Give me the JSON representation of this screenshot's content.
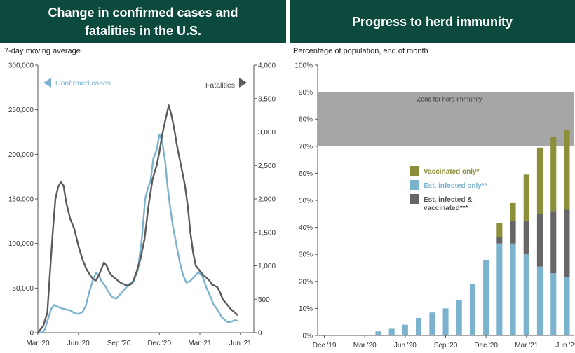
{
  "panels": {
    "left_title": "Change in confirmed cases and fatalities in the U.S.",
    "right_title": "Progress to herd immunity"
  },
  "colors": {
    "banner": "#0c4a3d",
    "cases": "#7bb3cf",
    "fatalities": "#5a5a5a",
    "vaccinated_only": "#8c8f3a",
    "infected_only": "#7bb3cf",
    "infected_vaccinated": "#666666",
    "herd_zone": "#a6a6a6"
  },
  "chart_data": [
    {
      "type": "line",
      "title": "Change in confirmed cases and fatalities in the U.S.",
      "subtitle": "7-day moving average",
      "x_ticks": [
        "Mar '20",
        "Jun '20",
        "Sep '20",
        "Dec '20",
        "Mar '21",
        "Jun '21"
      ],
      "x_range": [
        0,
        16
      ],
      "y_left": {
        "range": [
          0,
          300000
        ],
        "ticks": [
          "0",
          "50,000",
          "100,000",
          "150,000",
          "200,000",
          "250,000",
          "300,000"
        ],
        "tick_values": [
          0,
          50000,
          100000,
          150000,
          200000,
          250000,
          300000
        ]
      },
      "y_right": {
        "range": [
          0,
          4000
        ],
        "ticks": [
          "0",
          "500",
          "1,000",
          "1,500",
          "2,000",
          "2,500",
          "3,000",
          "3,500",
          "4,000"
        ],
        "tick_values": [
          0,
          500,
          1000,
          1500,
          2000,
          2500,
          3000,
          3500,
          4000
        ]
      },
      "legend": {
        "cases_label": "Confirmed cases",
        "fatalities_label": "Fatalities"
      },
      "series": [
        {
          "name": "Confirmed cases",
          "axis": "left",
          "points": [
            [
              0,
              0
            ],
            [
              0.3,
              200
            ],
            [
              0.5,
              3000
            ],
            [
              0.75,
              15000
            ],
            [
              1.0,
              27000
            ],
            [
              1.2,
              31000
            ],
            [
              1.5,
              29000
            ],
            [
              1.8,
              27000
            ],
            [
              2.1,
              26000
            ],
            [
              2.4,
              25000
            ],
            [
              2.7,
              22000
            ],
            [
              3.0,
              21000
            ],
            [
              3.3,
              23000
            ],
            [
              3.55,
              30000
            ],
            [
              3.8,
              45000
            ],
            [
              4.1,
              60000
            ],
            [
              4.3,
              67000
            ],
            [
              4.5,
              65000
            ],
            [
              4.7,
              58000
            ],
            [
              5.0,
              52000
            ],
            [
              5.25,
              45000
            ],
            [
              5.5,
              40000
            ],
            [
              5.8,
              38000
            ],
            [
              6.1,
              43000
            ],
            [
              6.5,
              50000
            ],
            [
              6.8,
              55000
            ],
            [
              7.1,
              58000
            ],
            [
              7.4,
              70000
            ],
            [
              7.7,
              105000
            ],
            [
              7.95,
              150000
            ],
            [
              8.15,
              162000
            ],
            [
              8.35,
              170000
            ],
            [
              8.55,
              195000
            ],
            [
              8.8,
              205000
            ],
            [
              9.0,
              222000
            ],
            [
              9.2,
              215000
            ],
            [
              9.45,
              190000
            ],
            [
              9.6,
              165000
            ],
            [
              9.8,
              140000
            ],
            [
              10.0,
              120000
            ],
            [
              10.25,
              100000
            ],
            [
              10.5,
              80000
            ],
            [
              10.75,
              65000
            ],
            [
              11.0,
              56000
            ],
            [
              11.3,
              58000
            ],
            [
              11.6,
              63000
            ],
            [
              11.9,
              68000
            ],
            [
              12.2,
              63000
            ],
            [
              12.5,
              50000
            ],
            [
              12.8,
              40000
            ],
            [
              13.0,
              32000
            ],
            [
              13.3,
              26000
            ],
            [
              13.6,
              18000
            ],
            [
              13.8,
              15000
            ],
            [
              14.0,
              12000
            ],
            [
              14.3,
              12000
            ],
            [
              14.6,
              14000
            ],
            [
              14.8,
              13000
            ]
          ]
        },
        {
          "name": "Fatalities",
          "axis": "right",
          "points": [
            [
              0,
              0
            ],
            [
              0.4,
              100
            ],
            [
              0.7,
              300
            ],
            [
              0.9,
              900
            ],
            [
              1.1,
              1500
            ],
            [
              1.3,
              2000
            ],
            [
              1.5,
              2180
            ],
            [
              1.7,
              2250
            ],
            [
              1.9,
              2200
            ],
            [
              2.1,
              1950
            ],
            [
              2.4,
              1700
            ],
            [
              2.7,
              1550
            ],
            [
              3.0,
              1300
            ],
            [
              3.3,
              1100
            ],
            [
              3.6,
              950
            ],
            [
              3.9,
              850
            ],
            [
              4.1,
              800
            ],
            [
              4.3,
              780
            ],
            [
              4.5,
              850
            ],
            [
              4.7,
              950
            ],
            [
              4.9,
              1050
            ],
            [
              5.1,
              1000
            ],
            [
              5.3,
              900
            ],
            [
              5.5,
              850
            ],
            [
              5.8,
              800
            ],
            [
              6.1,
              750
            ],
            [
              6.4,
              720
            ],
            [
              6.7,
              700
            ],
            [
              7.0,
              740
            ],
            [
              7.3,
              900
            ],
            [
              7.6,
              1100
            ],
            [
              7.9,
              1400
            ],
            [
              8.2,
              1900
            ],
            [
              8.5,
              2300
            ],
            [
              8.8,
              2500
            ],
            [
              9.0,
              2700
            ],
            [
              9.2,
              2950
            ],
            [
              9.45,
              3180
            ],
            [
              9.7,
              3400
            ],
            [
              9.9,
              3250
            ],
            [
              10.1,
              3050
            ],
            [
              10.3,
              2800
            ],
            [
              10.5,
              2600
            ],
            [
              10.7,
              2400
            ],
            [
              10.9,
              2200
            ],
            [
              11.1,
              1900
            ],
            [
              11.3,
              1500
            ],
            [
              11.5,
              1200
            ],
            [
              11.7,
              1000
            ],
            [
              11.9,
              950
            ],
            [
              12.1,
              900
            ],
            [
              12.3,
              850
            ],
            [
              12.5,
              820
            ],
            [
              12.7,
              780
            ],
            [
              12.9,
              720
            ],
            [
              13.1,
              700
            ],
            [
              13.3,
              680
            ],
            [
              13.5,
              600
            ],
            [
              13.7,
              500
            ],
            [
              13.9,
              450
            ],
            [
              14.1,
              400
            ],
            [
              14.3,
              350
            ],
            [
              14.6,
              300
            ],
            [
              14.8,
              260
            ]
          ]
        }
      ]
    },
    {
      "type": "bar",
      "stacked": true,
      "title": "Progress to herd immunity",
      "subtitle": "Percentage of population, end of month",
      "x_ticks": [
        "Dec '19",
        "Mar '20",
        "Jun '20",
        "Sep '20",
        "Dec '20",
        "Mar '21",
        "Jun '21"
      ],
      "y_ticks": [
        "0%",
        "10%",
        "20%",
        "30%",
        "40%",
        "50%",
        "60%",
        "70%",
        "80%",
        "90%",
        "100%"
      ],
      "y_tick_values": [
        0,
        10,
        20,
        30,
        40,
        50,
        60,
        70,
        80,
        90,
        100
      ],
      "ylim": [
        0,
        100
      ],
      "herd_zone": {
        "label": "Zone for herd immunity",
        "range": [
          70,
          90
        ]
      },
      "categories": [
        "Dec '19",
        "Jan '20",
        "Feb '20",
        "Mar '20",
        "Apr '20",
        "May '20",
        "Jun '20",
        "Jul '20",
        "Aug '20",
        "Sep '20",
        "Oct '20",
        "Nov '20",
        "Dec '20",
        "Jan '21",
        "Feb '21",
        "Mar '21",
        "Apr '21",
        "May '21",
        "Jun '21"
      ],
      "series": [
        {
          "name": "Est. infected only**",
          "values": [
            0,
            0,
            0,
            0.2,
            1.5,
            2.5,
            4,
            6.5,
            8.5,
            10,
            13,
            19,
            28,
            34,
            34,
            30,
            25.5,
            23,
            21.5
          ]
        },
        {
          "name": "Est. infected & vaccinated***",
          "values": [
            0,
            0,
            0,
            0,
            0,
            0,
            0,
            0,
            0,
            0,
            0,
            0,
            0,
            2.5,
            8.5,
            12.5,
            19.5,
            23,
            25
          ]
        },
        {
          "name": "Vaccinated only*",
          "values": [
            0,
            0,
            0,
            0,
            0,
            0,
            0,
            0,
            0,
            0,
            0,
            0,
            0,
            5,
            6.5,
            17,
            24.5,
            27.5,
            29.5
          ]
        }
      ],
      "legend": {
        "vaccinated_only": "Vaccinated only*",
        "infected_only": "Est. infected only**",
        "infected_vaccinated_line1": "Est. infected &",
        "infected_vaccinated_line2": "vaccinated***"
      }
    }
  ]
}
